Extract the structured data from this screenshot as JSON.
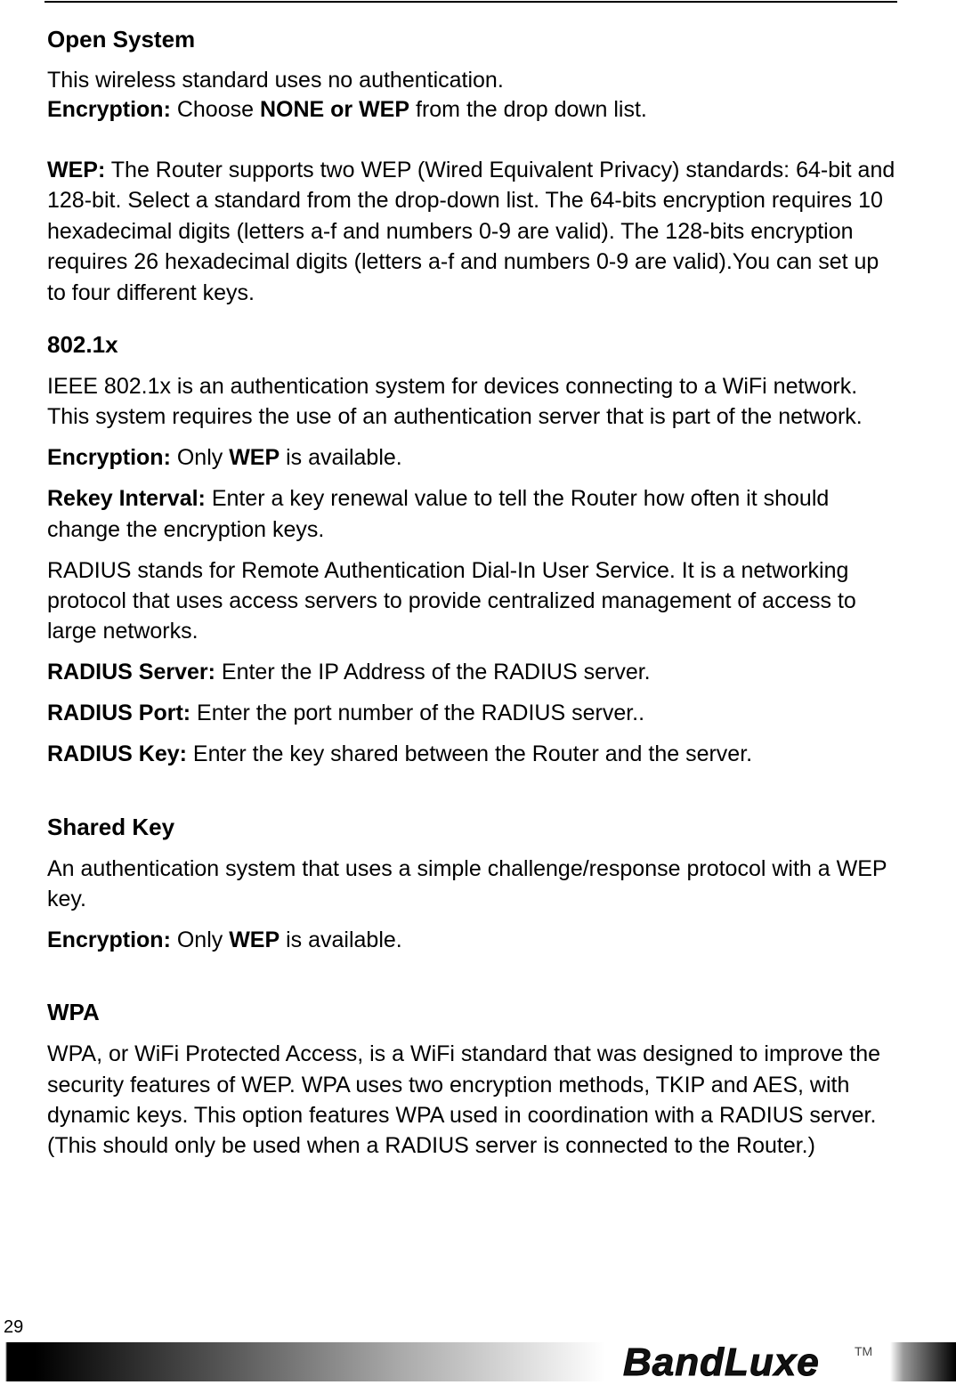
{
  "sections": [
    {
      "heading": "Open System",
      "paragraphs": [
        [
          {
            "text": "This wireless standard uses no authentication.",
            "bold": false
          }
        ],
        [
          {
            "text": "Encryption:",
            "bold": true
          },
          {
            "text": " Choose ",
            "bold": false
          },
          {
            "text": "NONE or WEP",
            "bold": true
          },
          {
            "text": " from the drop down list.",
            "bold": false
          }
        ],
        [
          {
            "text": "WEP:",
            "bold": true
          },
          {
            "text": " The Router supports two WEP (Wired Equivalent Privacy) standards: 64-bit and 128-bit. Select a standard from the drop-down list. The 64-bits encryption requires 10 hexadecimal digits (letters a-f and numbers 0-9 are valid). The 128-bits encryption requires 26 hexadecimal digits (letters a-f and numbers 0-9 are valid).You can set up to four different keys.",
            "bold": false
          }
        ]
      ]
    },
    {
      "heading": "802.1x",
      "paragraphs": [
        [
          {
            "text": "IEEE 802.1x is an authentication system for devices connecting to a WiFi network. This system requires the use of an authentication server that is part of the network.",
            "bold": false
          }
        ],
        [
          {
            "text": "Encryption:",
            "bold": true
          },
          {
            "text": " Only ",
            "bold": false
          },
          {
            "text": "WEP",
            "bold": true
          },
          {
            "text": " is available.",
            "bold": false
          }
        ],
        [
          {
            "text": "Rekey Interval:",
            "bold": true
          },
          {
            "text": " Enter a key renewal value to tell the Router how often it should change the encryption keys.",
            "bold": false
          }
        ],
        [
          {
            "text": "RADIUS stands for Remote Authentication Dial-In User Service. It is a networking protocol that uses access servers to provide centralized management of access to large networks.",
            "bold": false
          }
        ],
        [
          {
            "text": "RADIUS Server:",
            "bold": true
          },
          {
            "text": " Enter the IP Address of the RADIUS server.",
            "bold": false
          }
        ],
        [
          {
            "text": "RADIUS Port:",
            "bold": true
          },
          {
            "text": " Enter the port number of the RADIUS server..",
            "bold": false
          }
        ],
        [
          {
            "text": "RADIUS Key:",
            "bold": true
          },
          {
            "text": " Enter the key shared between the Router and the server.",
            "bold": false
          }
        ]
      ]
    },
    {
      "heading": "Shared Key",
      "paragraphs": [
        [
          {
            "text": "An authentication system that uses a simple challenge/response protocol with a WEP key.",
            "bold": false
          }
        ],
        [
          {
            "text": "Encryption:",
            "bold": true
          },
          {
            "text": " Only ",
            "bold": false
          },
          {
            "text": "WEP",
            "bold": true
          },
          {
            "text": " is available.",
            "bold": false
          }
        ]
      ]
    },
    {
      "heading": "WPA",
      "paragraphs": [
        [
          {
            "text": "WPA, or WiFi Protected Access, is a WiFi standard that was designed to improve the security features of WEP. WPA uses two encryption methods, TKIP and AES, with dynamic keys. This option features WPA used in coordination with a RADIUS server. (This should only be used when a RADIUS server is connected to the Router.)",
            "bold": false
          }
        ]
      ]
    }
  ],
  "page_number": "29",
  "logo": "BandLuxe",
  "trademark": "TM"
}
